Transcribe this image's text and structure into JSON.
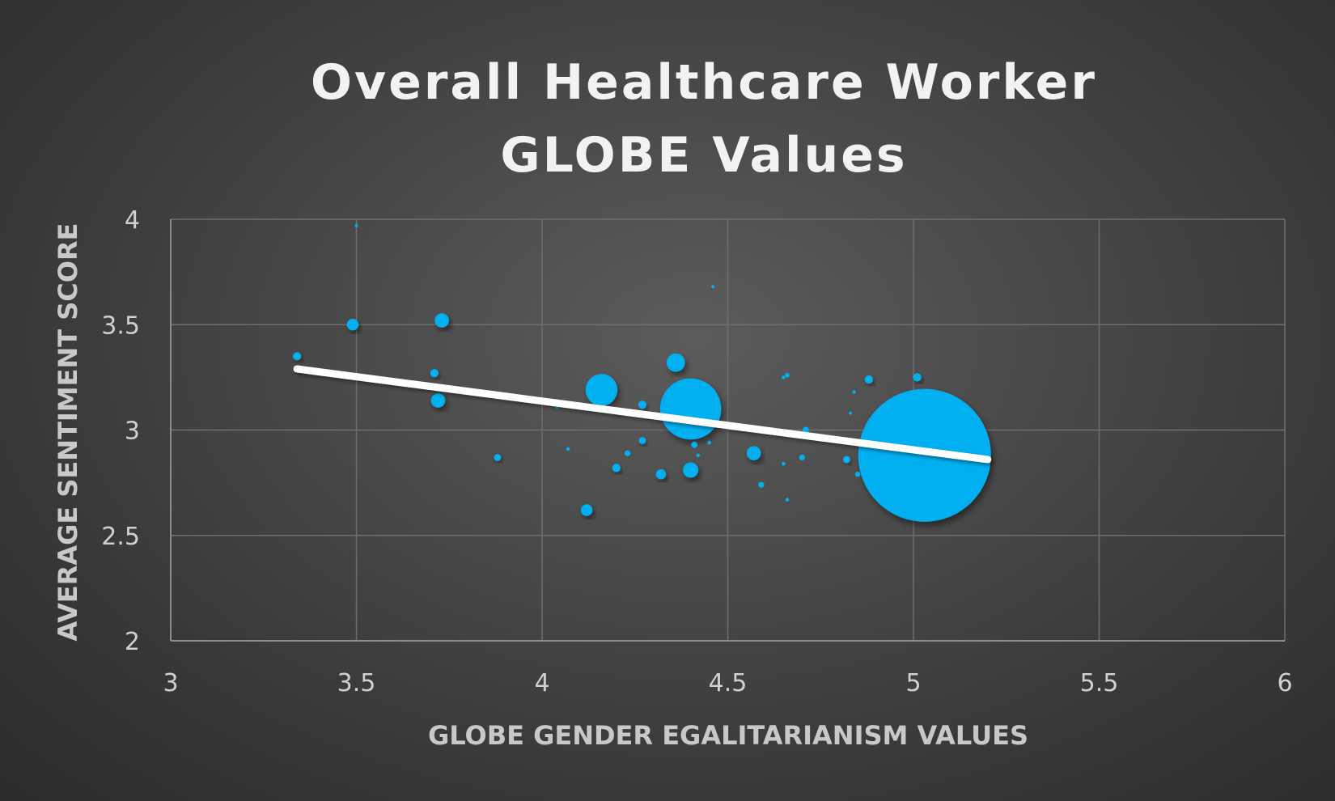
{
  "chart_data": {
    "type": "scatter",
    "title_lines": [
      "Overall Healthcare Worker",
      "GLOBE Values"
    ],
    "xlabel": "GLOBE GENDER EGALITARIANISM VALUES",
    "ylabel": "AVERAGE SENTIMENT SCORE",
    "xlim": [
      3,
      6
    ],
    "ylim": [
      2,
      4
    ],
    "x_ticks": [
      "3",
      "3.5",
      "4",
      "4.5",
      "5",
      "5.5",
      "6"
    ],
    "y_ticks": [
      "2",
      "2.5",
      "3",
      "3.5",
      "4"
    ],
    "grid": true,
    "marker_color": "#00b0f0",
    "trendline_color": "#ffffff",
    "trendline": {
      "x": [
        3.34,
        5.2
      ],
      "y": [
        3.29,
        2.86
      ]
    },
    "points": [
      {
        "x": 3.34,
        "y": 3.35,
        "size": 2
      },
      {
        "x": 3.49,
        "y": 3.5,
        "size": 4
      },
      {
        "x": 3.5,
        "y": 3.97,
        "size": 0.3
      },
      {
        "x": 3.71,
        "y": 3.27,
        "size": 2
      },
      {
        "x": 3.72,
        "y": 3.14,
        "size": 6
      },
      {
        "x": 3.73,
        "y": 3.52,
        "size": 6
      },
      {
        "x": 3.88,
        "y": 2.87,
        "size": 1.5
      },
      {
        "x": 4.04,
        "y": 3.11,
        "size": 0.4
      },
      {
        "x": 4.07,
        "y": 2.91,
        "size": 0.4
      },
      {
        "x": 4.12,
        "y": 2.62,
        "size": 4
      },
      {
        "x": 4.16,
        "y": 3.19,
        "size": 30
      },
      {
        "x": 4.2,
        "y": 2.82,
        "size": 2
      },
      {
        "x": 4.23,
        "y": 2.89,
        "size": 1
      },
      {
        "x": 4.27,
        "y": 2.95,
        "size": 1.5
      },
      {
        "x": 4.27,
        "y": 3.12,
        "size": 2
      },
      {
        "x": 4.32,
        "y": 2.79,
        "size": 3
      },
      {
        "x": 4.36,
        "y": 3.32,
        "size": 10
      },
      {
        "x": 4.4,
        "y": 2.81,
        "size": 7
      },
      {
        "x": 4.4,
        "y": 3.1,
        "size": 110
      },
      {
        "x": 4.41,
        "y": 2.93,
        "size": 1.2
      },
      {
        "x": 4.42,
        "y": 2.88,
        "size": 0.4
      },
      {
        "x": 4.45,
        "y": 2.94,
        "size": 0.4
      },
      {
        "x": 4.46,
        "y": 3.68,
        "size": 0.3
      },
      {
        "x": 4.57,
        "y": 2.89,
        "size": 6
      },
      {
        "x": 4.59,
        "y": 2.74,
        "size": 1
      },
      {
        "x": 4.65,
        "y": 3.25,
        "size": 0.4
      },
      {
        "x": 4.65,
        "y": 2.84,
        "size": 0.4
      },
      {
        "x": 4.66,
        "y": 3.26,
        "size": 0.6
      },
      {
        "x": 4.66,
        "y": 2.67,
        "size": 0.4
      },
      {
        "x": 4.7,
        "y": 2.87,
        "size": 1
      },
      {
        "x": 4.71,
        "y": 3.0,
        "size": 1.2
      },
      {
        "x": 4.82,
        "y": 2.86,
        "size": 1.5
      },
      {
        "x": 4.83,
        "y": 3.08,
        "size": 0.3
      },
      {
        "x": 4.84,
        "y": 3.18,
        "size": 0.4
      },
      {
        "x": 4.85,
        "y": 2.79,
        "size": 0.8
      },
      {
        "x": 4.88,
        "y": 3.24,
        "size": 2
      },
      {
        "x": 5.01,
        "y": 3.25,
        "size": 2
      },
      {
        "x": 5.03,
        "y": 2.88,
        "size": 520
      }
    ]
  }
}
